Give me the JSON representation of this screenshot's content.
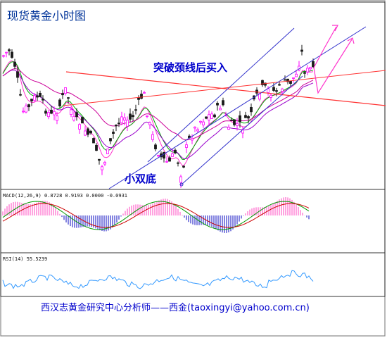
{
  "chart_data": [
    {
      "type": "candlestick",
      "title": "现货黄金小时图",
      "annotations": [
        "突破颈线后买入",
        "小双底"
      ],
      "colors": {
        "bull": "#ff00ff",
        "bear": "#1a1a1a",
        "channel": "#3333cc",
        "neckline": "#ff3333",
        "ma": [
          "#ff33cc",
          "#00aa00",
          "#9900cc",
          "#cc0099"
        ]
      }
    },
    {
      "type": "bar",
      "name": "MACD",
      "label": "MACD(12,26,9) 0.8728 0.9193 0.0000 -0.0931",
      "params": [
        12,
        26,
        9
      ],
      "values": [
        0.8728,
        0.9193,
        0.0,
        -0.0931
      ],
      "colors": {
        "pos": "#ff66cc",
        "neg": "#3333cc",
        "line1": "#009900",
        "line2": "#cc0000"
      }
    },
    {
      "type": "line",
      "name": "RSI",
      "label": "RSI(14) 55.5239",
      "period": 14,
      "value": 55.5239,
      "color": "#3399ff"
    }
  ],
  "footer": "西汉志黄金研究中心分析师——西金(taoxingyi@yahoo.com.cn)"
}
